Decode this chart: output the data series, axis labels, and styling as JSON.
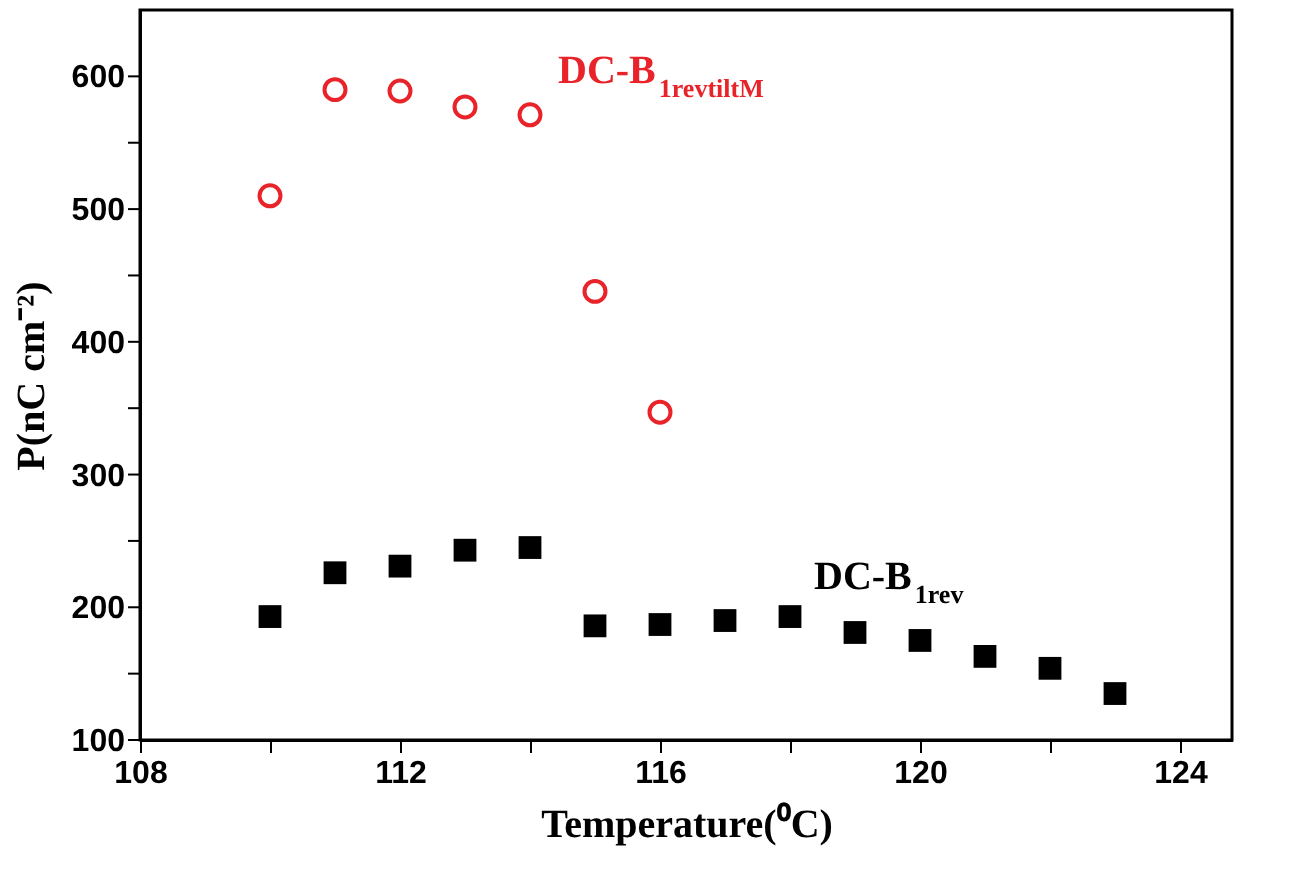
{
  "chart_data": {
    "type": "scatter",
    "xlabel": "Temperature(⁰C)",
    "ylabel": "P(nC cm⁻²)",
    "xlim": [
      108,
      124.8
    ],
    "ylim": [
      100,
      650
    ],
    "xticks": [
      108,
      {
        "value": 110,
        "label": null
      },
      112,
      {
        "value": 114,
        "label": null
      },
      116,
      {
        "value": 118,
        "label": null
      },
      120,
      {
        "value": 122,
        "label": null
      },
      124
    ],
    "yticks": [
      100,
      {
        "value": 150,
        "label": null
      },
      200,
      {
        "value": 250,
        "label": null
      },
      300,
      {
        "value": 350,
        "label": null
      },
      400,
      {
        "value": 450,
        "label": null
      },
      500,
      {
        "value": 550,
        "label": null
      },
      600
    ],
    "grid": false,
    "series": [
      {
        "name": "DC-B$_{1revtiltM}$",
        "color": "#e8242a",
        "marker": "circle",
        "x": [
          110,
          111,
          112,
          113,
          114,
          115,
          116
        ],
        "values": [
          510,
          590,
          589,
          577,
          571,
          438,
          347
        ]
      },
      {
        "name": "DC-B$_{1rev}$",
        "color": "#000000",
        "marker": "square",
        "x": [
          110,
          111,
          112,
          113,
          114,
          115,
          116,
          117,
          118,
          119,
          120,
          121,
          122,
          123
        ],
        "values": [
          193,
          226,
          231,
          243,
          245,
          186,
          187,
          190,
          193,
          181,
          175,
          163,
          154,
          135
        ]
      }
    ]
  }
}
